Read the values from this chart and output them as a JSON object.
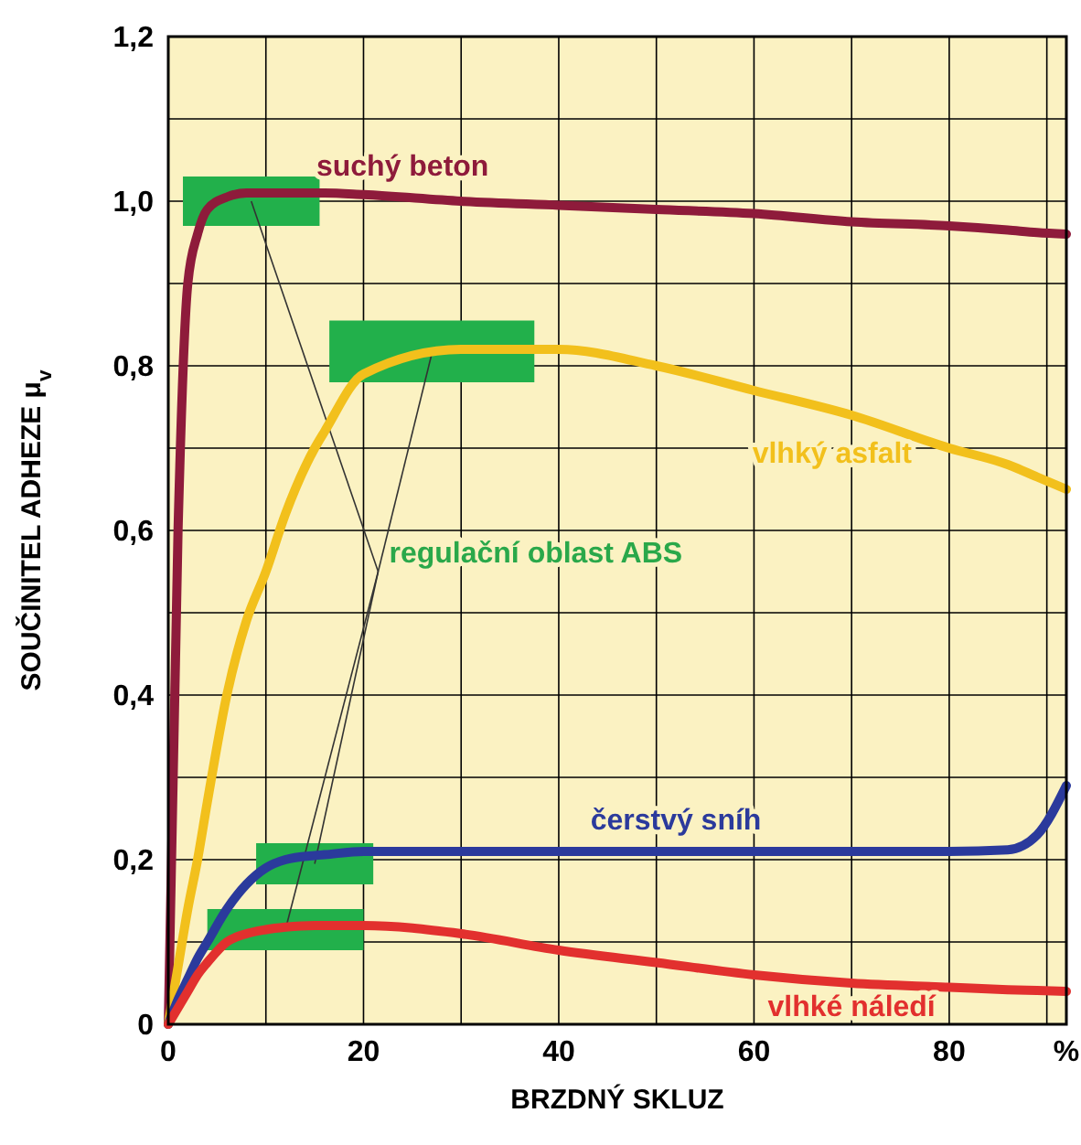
{
  "chart_data": {
    "type": "line",
    "xlabel": "BRZDNÝ SKLUZ",
    "ylabel": "SOUČINITEL ADHEZE μ$_{v}$",
    "xlim": [
      0,
      92
    ],
    "ylim": [
      0,
      1.2
    ],
    "xticks": [
      0,
      {
        "value": 10,
        "label": null
      },
      20,
      {
        "value": 30,
        "label": null
      },
      40,
      {
        "value": 50,
        "label": null
      },
      60,
      {
        "value": 70,
        "label": null
      },
      80,
      {
        "value": 90,
        "label": null
      },
      {
        "value": 92,
        "label": "%"
      }
    ],
    "yticks": [
      0,
      {
        "value": 0.1,
        "label": null
      },
      {
        "value": 0.2,
        "label": "0,2"
      },
      {
        "value": 0.3,
        "label": null
      },
      {
        "value": 0.4,
        "label": "0,4"
      },
      {
        "value": 0.5,
        "label": null
      },
      {
        "value": 0.6,
        "label": "0,6"
      },
      {
        "value": 0.7,
        "label": null
      },
      {
        "value": 0.8,
        "label": "0,8"
      },
      {
        "value": 0.9,
        "label": null
      },
      {
        "value": 1.0,
        "label": "1,0"
      },
      {
        "value": 1.1,
        "label": null
      },
      {
        "value": 1.2,
        "label": "1,2"
      }
    ],
    "grid": true,
    "marker": "none",
    "line_style": "solid",
    "x": [
      0,
      1,
      2,
      3,
      4,
      6,
      8,
      10,
      12,
      15,
      16,
      20,
      30,
      40,
      50,
      60,
      70,
      80,
      86,
      89,
      92
    ],
    "series": [
      {
        "name": "suchý beton",
        "color": "#8e1b3b",
        "values": [
          0,
          0.6,
          0.9,
          0.96,
          0.99,
          1.005,
          1.01,
          1.01,
          1.01,
          1.01,
          1.01,
          1.008,
          1.0,
          0.995,
          0.99,
          0.985,
          0.975,
          0.97,
          0.965,
          0.962,
          0.96
        ]
      },
      {
        "name": "vlhký asfalt",
        "color": "#f2c01c",
        "values": [
          0,
          0.07,
          0.14,
          0.2,
          0.27,
          0.4,
          0.49,
          0.55,
          0.62,
          0.7,
          0.72,
          0.79,
          0.82,
          0.82,
          0.8,
          0.77,
          0.74,
          0.7,
          0.68,
          0.665,
          0.65
        ]
      },
      {
        "name": "čerstvý sníh",
        "color": "#2b3a9c",
        "values": [
          0,
          0.03,
          0.055,
          0.08,
          0.1,
          0.14,
          0.17,
          0.19,
          0.2,
          0.205,
          0.206,
          0.21,
          0.21,
          0.21,
          0.21,
          0.21,
          0.21,
          0.21,
          0.212,
          0.23,
          0.29
        ]
      },
      {
        "name": "vlhké náledí",
        "color": "#e2302e",
        "values": [
          0,
          0.02,
          0.04,
          0.06,
          0.075,
          0.1,
          0.11,
          0.115,
          0.118,
          0.12,
          0.12,
          0.12,
          0.11,
          0.09,
          0.075,
          0.06,
          0.05,
          0.045,
          0.042,
          0.041,
          0.04
        ]
      }
    ],
    "annotations": [
      {
        "text": "regulační oblast ABS",
        "x": 27,
        "y": 0.815
      }
    ]
  }
}
